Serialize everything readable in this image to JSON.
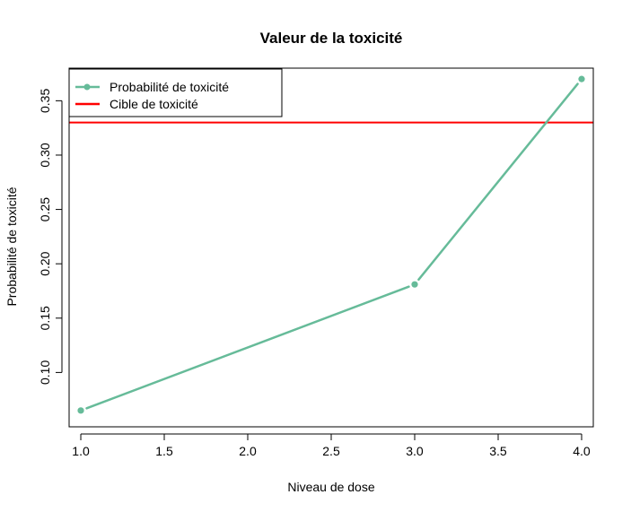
{
  "chart_data": {
    "type": "line",
    "title": "Valeur de la toxicité",
    "xlabel": "Niveau de dose",
    "ylabel": "Probabilité de toxicité",
    "xlim": [
      0.93,
      4.07
    ],
    "ylim": [
      0.05,
      0.38
    ],
    "x_ticks": [
      1.0,
      1.5,
      2.0,
      2.5,
      3.0,
      3.5,
      4.0
    ],
    "x_tick_labels": [
      "1.0",
      "1.5",
      "2.0",
      "2.5",
      "3.0",
      "3.5",
      "4.0"
    ],
    "y_ticks": [
      0.1,
      0.15,
      0.2,
      0.25,
      0.3,
      0.35
    ],
    "y_tick_labels": [
      "0.10",
      "0.15",
      "0.20",
      "0.25",
      "0.30",
      "0.35"
    ],
    "grid": false,
    "legend_position": "top-left",
    "series": [
      {
        "name": "Probabilité de toxicité",
        "x": [
          1,
          3,
          4
        ],
        "y": [
          0.065,
          0.181,
          0.37
        ],
        "color": "#66bb99"
      }
    ],
    "hlines": [
      {
        "name": "Cible de toxicité",
        "y": 0.33,
        "color": "#ff0000"
      }
    ]
  }
}
